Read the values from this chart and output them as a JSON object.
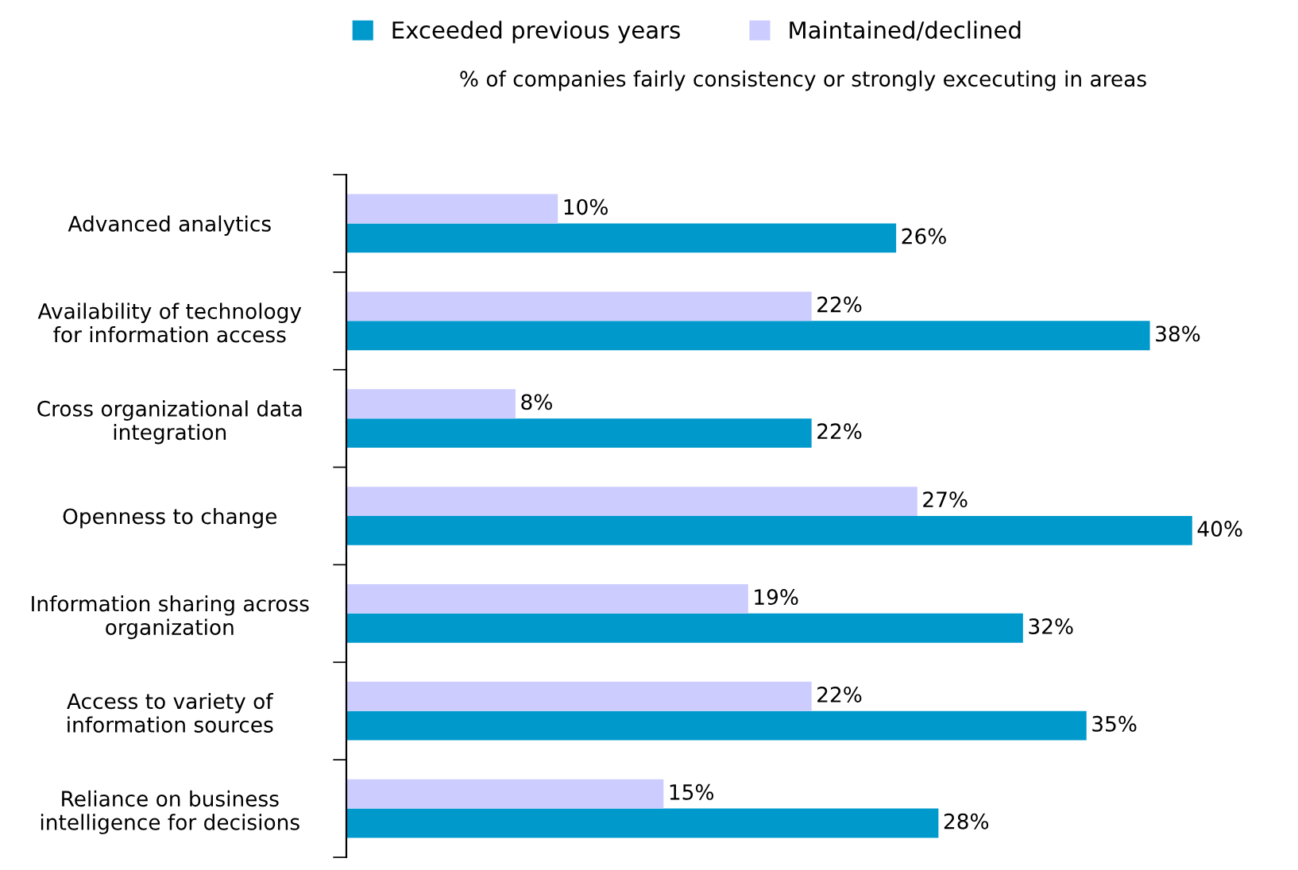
{
  "chart_data": {
    "type": "bar",
    "orientation": "horizontal",
    "title": "% of companies fairly consistency or strongly excecuting in areas",
    "categories": [
      "Advanced analytics",
      "Availability of technology\nfor information access",
      "Cross organizational data\nintegration",
      "Openness to change",
      "Information sharing across\norganization",
      "Access to variety of\ninformation sources",
      "Reliance on business\nintelligence for decisions"
    ],
    "series": [
      {
        "name": "Exceeded previous years",
        "color": "#0099cc",
        "values": [
          26,
          38,
          22,
          40,
          32,
          35,
          28
        ],
        "value_labels": [
          "26%",
          "38%",
          "22%",
          "40%",
          "32%",
          "35%",
          "28%"
        ]
      },
      {
        "name": "Maintained/declined",
        "color": "#ccccff",
        "values": [
          10,
          22,
          8,
          27,
          19,
          22,
          15
        ],
        "value_labels": [
          "10%",
          "22%",
          "8%",
          "27%",
          "19%",
          "22%",
          "15%"
        ]
      }
    ],
    "legend": "top",
    "grid": false
  }
}
